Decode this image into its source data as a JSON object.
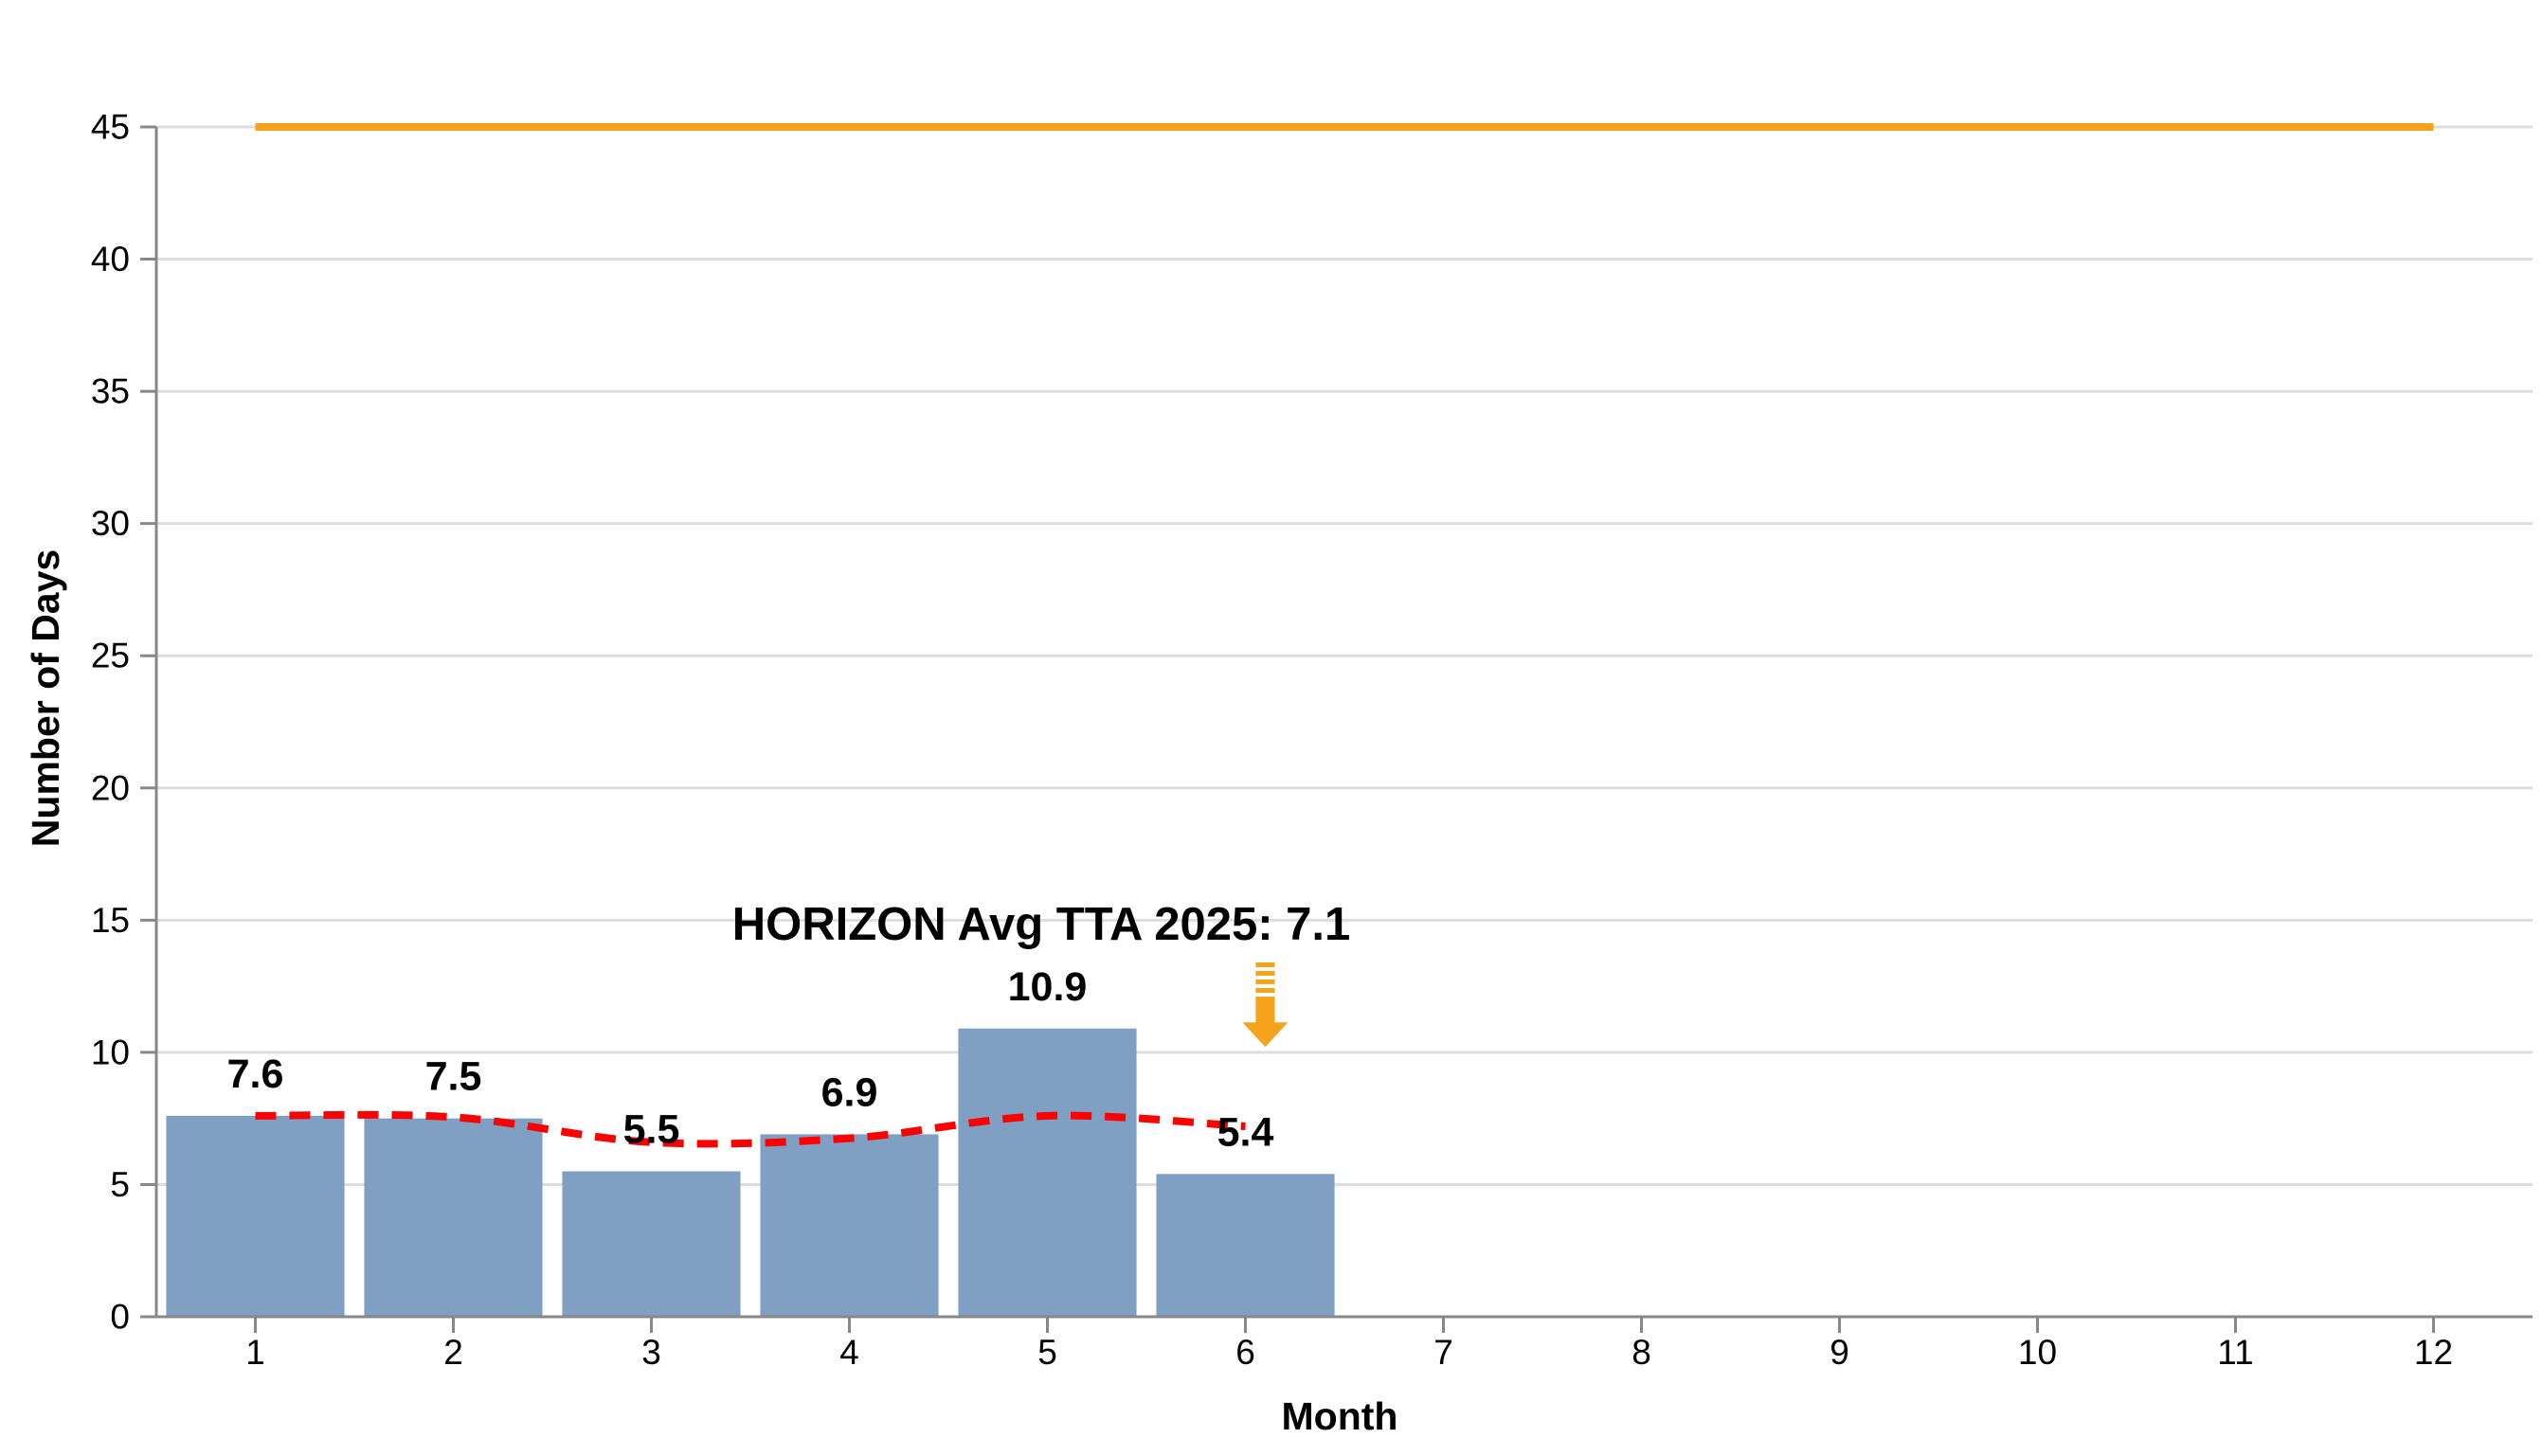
{
  "chart_data": {
    "type": "bar",
    "x": [
      1,
      2,
      3,
      4,
      5,
      6
    ],
    "values": [
      7.6,
      7.5,
      5.5,
      6.9,
      10.9,
      5.4
    ],
    "data_labels": [
      "7.6",
      "7.5",
      "5.5",
      "6.9",
      "10.9",
      "5.4"
    ],
    "trend_line": {
      "x": [
        1,
        2,
        3,
        4,
        5,
        6
      ],
      "y": [
        7.6,
        7.55,
        6.6,
        6.75,
        7.6,
        7.2
      ],
      "style": "dashed",
      "color": "#ff0000"
    },
    "reference_line": {
      "y": 45,
      "x_range": [
        1,
        12
      ],
      "color": "#f5a31a"
    },
    "annotation": {
      "text": "HORIZON Avg TTA 2025: 7.1",
      "arrow_x": 6.1,
      "arrow_y_range": [
        13.4,
        10.2
      ],
      "arrow_color": "#f5a31a"
    },
    "x_ticks": [
      "1",
      "2",
      "3",
      "4",
      "5",
      "6",
      "7",
      "8",
      "9",
      "10",
      "11",
      "12"
    ],
    "y_ticks": [
      "0",
      "5",
      "10",
      "15",
      "20",
      "25",
      "30",
      "35",
      "40",
      "45"
    ],
    "xlabel": "Month",
    "ylabel": "Number of Days",
    "xlim": [
      0.5,
      12.5
    ],
    "ylim": [
      0,
      45
    ],
    "grid": true,
    "bar_color": "#7f9fc3",
    "grid_color": "#dddddd",
    "axis_color": "#888888"
  }
}
